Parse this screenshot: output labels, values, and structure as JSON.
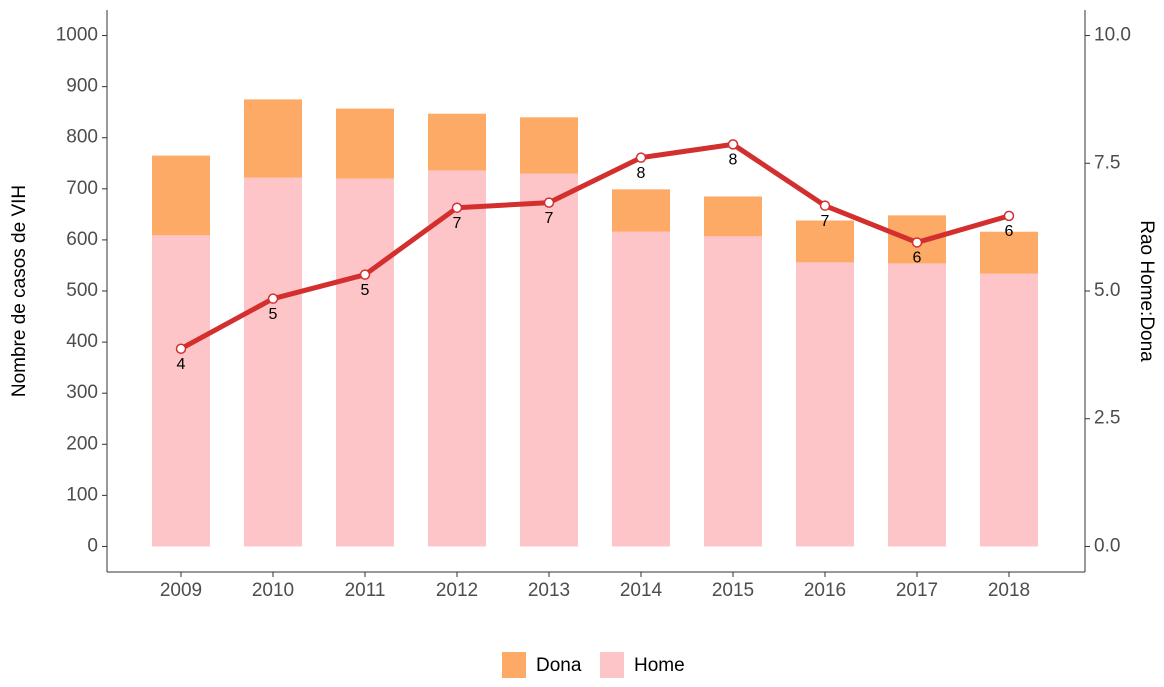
{
  "chart_data": {
    "type": "bar",
    "categories": [
      "2009",
      "2010",
      "2011",
      "2012",
      "2013",
      "2014",
      "2015",
      "2016",
      "2017",
      "2018"
    ],
    "series": [
      {
        "name": "Dona",
        "type": "bar",
        "color": "#fdaa66",
        "values": [
          156,
          153,
          137,
          111,
          110,
          83,
          78,
          82,
          94,
          82
        ]
      },
      {
        "name": "Home",
        "type": "bar",
        "color": "#fec5c8",
        "values": [
          609,
          722,
          720,
          736,
          730,
          616,
          607,
          556,
          554,
          534
        ]
      },
      {
        "type": "line",
        "axis": "y2",
        "color": "#d32f2f",
        "values": [
          3.87,
          4.85,
          5.32,
          6.63,
          6.73,
          7.61,
          7.87,
          6.67,
          5.95,
          6.47
        ],
        "value_labels": [
          "4",
          "5",
          "5",
          "7",
          "7",
          "8",
          "8",
          "7",
          "6",
          "6"
        ]
      }
    ],
    "ylabel": "Nombre de casos de VIH",
    "y2label": "Rao Home:Dona",
    "ylim": [
      -50,
      1050
    ],
    "yticks": [
      0,
      100,
      200,
      300,
      400,
      500,
      600,
      700,
      800,
      900,
      1000
    ],
    "y2lim": [
      -0.5,
      10.5
    ],
    "y2ticks": [
      {
        "value": 0,
        "label": "0.0"
      },
      {
        "value": 2.5,
        "label": "2.5"
      },
      {
        "value": 5,
        "label": "5.0"
      },
      {
        "value": 7.5,
        "label": "7.5"
      },
      {
        "value": 10,
        "label": "10.0"
      }
    ],
    "legend": "bottom"
  }
}
